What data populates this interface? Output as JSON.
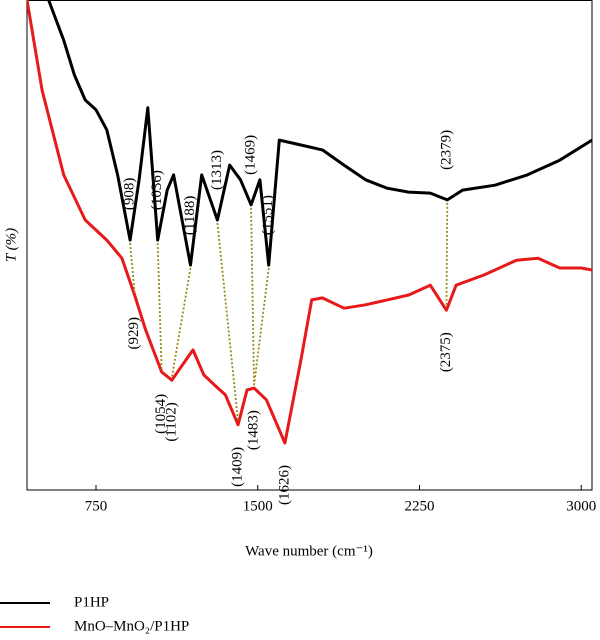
{
  "chart_data": {
    "type": "line",
    "xlabel": "Wave number (cm⁻¹)",
    "ylabel": "T (%)",
    "xlim": [
      430,
      3050
    ],
    "xticks": [
      750,
      1500,
      2250,
      3000
    ],
    "ylim": [
      0,
      100
    ],
    "series": [
      {
        "name": "P1HP",
        "color": "#000000",
        "x": [
          530,
          600,
          650,
          700,
          750,
          800,
          850,
          908,
          950,
          990,
          1036,
          1080,
          1110,
          1188,
          1240,
          1313,
          1370,
          1420,
          1469,
          1510,
          1551,
          1600,
          1700,
          1800,
          1900,
          2000,
          2100,
          2200,
          2300,
          2379,
          2450,
          2600,
          2750,
          2900,
          3050
        ],
        "values": [
          100,
          91.8,
          84.7,
          79.6,
          77.6,
          73.5,
          64.3,
          51,
          63.3,
          78,
          51,
          61.2,
          64.3,
          45.9,
          64.3,
          55.1,
          66.3,
          63.3,
          58.2,
          63.3,
          45.9,
          71.4,
          70.4,
          69.4,
          66.3,
          63.3,
          61.6,
          60.8,
          60.6,
          59.2,
          61.2,
          62.2,
          64.3,
          67.3,
          71.4
        ]
      },
      {
        "name": "MnO–MnO₂/P1HP",
        "color": "#e8191b",
        "x": [
          430,
          500,
          600,
          700,
          800,
          870,
          929,
          980,
          1054,
          1102,
          1150,
          1200,
          1250,
          1300,
          1350,
          1409,
          1450,
          1483,
          1540,
          1626,
          1700,
          1750,
          1800,
          1900,
          2000,
          2100,
          2200,
          2300,
          2375,
          2420,
          2550,
          2700,
          2800,
          2900,
          3000,
          3050
        ],
        "values": [
          100,
          81.6,
          64.3,
          55.1,
          51,
          47.3,
          39.8,
          32.7,
          24.1,
          22.4,
          25.5,
          28.6,
          23.5,
          21.4,
          19.4,
          13.3,
          20.4,
          20.8,
          18.4,
          9.6,
          26.5,
          38.8,
          39.2,
          37.1,
          37.8,
          38.8,
          39.8,
          41.8,
          36.7,
          41.8,
          43.9,
          46.9,
          47.3,
          45.3,
          45.3,
          44.9
        ]
      }
    ],
    "annotations": [
      {
        "series": 0,
        "x": 908,
        "label": "(908)"
      },
      {
        "series": 0,
        "x": 1036,
        "label": "(1036)"
      },
      {
        "series": 0,
        "x": 1188,
        "label": "(1188)"
      },
      {
        "series": 0,
        "x": 1313,
        "label": "(1313)"
      },
      {
        "series": 0,
        "x": 1469,
        "label": "(1469)"
      },
      {
        "series": 0,
        "x": 1551,
        "label": "(1551)"
      },
      {
        "series": 0,
        "x": 2379,
        "label": "(2379)"
      },
      {
        "series": 1,
        "x": 929,
        "label": "(929)"
      },
      {
        "series": 1,
        "x": 1054,
        "label": "(1054)"
      },
      {
        "series": 1,
        "x": 1102,
        "label": "(1102)"
      },
      {
        "series": 1,
        "x": 1409,
        "label": "(1409)"
      },
      {
        "series": 1,
        "x": 1483,
        "label": "(1483)"
      },
      {
        "series": 1,
        "x": 1626,
        "label": "(1626)"
      },
      {
        "series": 1,
        "x": 2375,
        "label": "(2375)"
      }
    ]
  }
}
